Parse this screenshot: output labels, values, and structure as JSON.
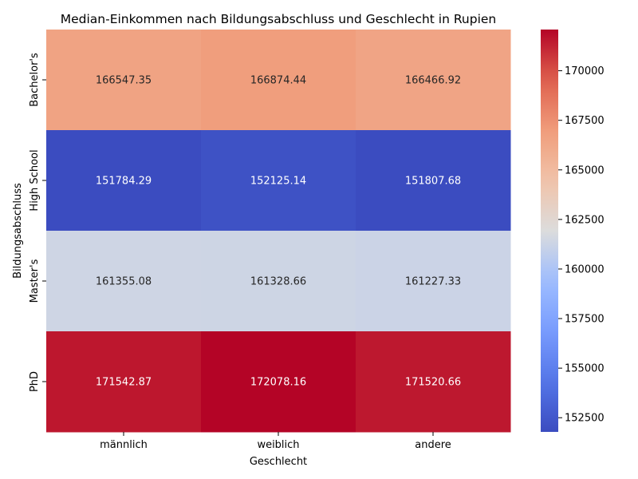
{
  "chart_data": {
    "type": "heatmap",
    "title": "Median-Einkommen nach Bildungsabschluss und Geschlecht in Rupien",
    "xlabel": "Geschlecht",
    "ylabel": "Bildungsabschluss",
    "x_categories": [
      "männlich",
      "weiblich",
      "andere"
    ],
    "y_categories": [
      "Bachelor's",
      "High School",
      "Master's",
      "PhD"
    ],
    "values": [
      [
        166547.35,
        166874.44,
        166466.92
      ],
      [
        151784.29,
        152125.14,
        151807.68
      ],
      [
        161355.08,
        161328.66,
        161227.33
      ],
      [
        171542.87,
        172078.16,
        171520.66
      ]
    ],
    "value_labels": [
      [
        "166547.35",
        "166874.44",
        "166466.92"
      ],
      [
        "151784.29",
        "152125.14",
        "151807.68"
      ],
      [
        "161355.08",
        "161328.66",
        "161227.33"
      ],
      [
        "171542.87",
        "172078.16",
        "171520.66"
      ]
    ],
    "colormap": "coolwarm",
    "color_range": [
      151784.29,
      172078.16
    ],
    "colorbar_ticks": [
      152500,
      155000,
      157500,
      160000,
      162500,
      165000,
      167500,
      170000
    ],
    "colorbar_tick_labels": [
      "152500",
      "155000",
      "157500",
      "160000",
      "162500",
      "165000",
      "167500",
      "170000"
    ]
  }
}
